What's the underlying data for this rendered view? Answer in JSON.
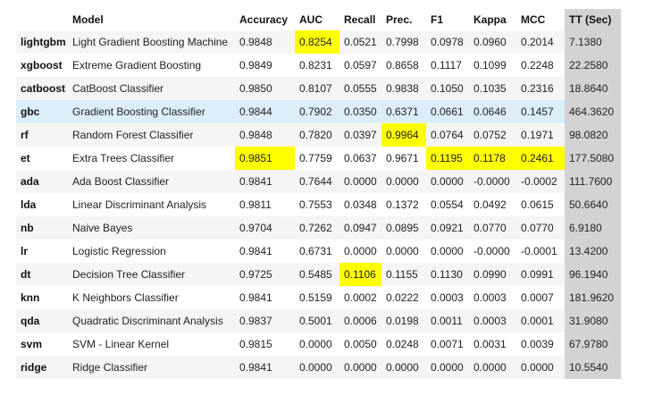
{
  "headers": [
    "",
    "Model",
    "Accuracy",
    "AUC",
    "Recall",
    "Prec.",
    "F1",
    "Kappa",
    "MCC",
    "TT (Sec)"
  ],
  "highlight_color": "#ffff00",
  "tt_column_color": "#d3d3d3",
  "hover_row_color": "#ddeefb",
  "hover_row_index": 3,
  "rows": [
    {
      "id": "lightgbm",
      "model": "Light Gradient Boosting Machine",
      "values": [
        "0.9848",
        "0.8254",
        "0.0521",
        "0.7998",
        "0.0978",
        "0.0960",
        "0.2014",
        "7.1380"
      ],
      "highlight": [
        1
      ]
    },
    {
      "id": "xgboost",
      "model": "Extreme Gradient Boosting",
      "values": [
        "0.9849",
        "0.8231",
        "0.0597",
        "0.8658",
        "0.1117",
        "0.1099",
        "0.2248",
        "22.2580"
      ],
      "highlight": []
    },
    {
      "id": "catboost",
      "model": "CatBoost Classifier",
      "values": [
        "0.9850",
        "0.8107",
        "0.0555",
        "0.9838",
        "0.1050",
        "0.1035",
        "0.2316",
        "18.8640"
      ],
      "highlight": []
    },
    {
      "id": "gbc",
      "model": "Gradient Boosting Classifier",
      "values": [
        "0.9844",
        "0.7902",
        "0.0350",
        "0.6371",
        "0.0661",
        "0.0646",
        "0.1457",
        "464.3620"
      ],
      "highlight": []
    },
    {
      "id": "rf",
      "model": "Random Forest Classifier",
      "values": [
        "0.9848",
        "0.7820",
        "0.0397",
        "0.9964",
        "0.0764",
        "0.0752",
        "0.1971",
        "98.0820"
      ],
      "highlight": [
        3
      ]
    },
    {
      "id": "et",
      "model": "Extra Trees Classifier",
      "values": [
        "0.9851",
        "0.7759",
        "0.0637",
        "0.9671",
        "0.1195",
        "0.1178",
        "0.2461",
        "177.5080"
      ],
      "highlight": [
        0,
        4,
        5,
        6
      ]
    },
    {
      "id": "ada",
      "model": "Ada Boost Classifier",
      "values": [
        "0.9841",
        "0.7644",
        "0.0000",
        "0.0000",
        "0.0000",
        "-0.0000",
        "-0.0002",
        "111.7600"
      ],
      "highlight": []
    },
    {
      "id": "lda",
      "model": "Linear Discriminant Analysis",
      "values": [
        "0.9811",
        "0.7553",
        "0.0348",
        "0.1372",
        "0.0554",
        "0.0492",
        "0.0615",
        "50.6640"
      ],
      "highlight": []
    },
    {
      "id": "nb",
      "model": "Naive Bayes",
      "values": [
        "0.9704",
        "0.7262",
        "0.0947",
        "0.0895",
        "0.0921",
        "0.0770",
        "0.0770",
        "6.9180"
      ],
      "highlight": []
    },
    {
      "id": "lr",
      "model": "Logistic Regression",
      "values": [
        "0.9841",
        "0.6731",
        "0.0000",
        "0.0000",
        "0.0000",
        "-0.0000",
        "-0.0001",
        "13.4200"
      ],
      "highlight": []
    },
    {
      "id": "dt",
      "model": "Decision Tree Classifier",
      "values": [
        "0.9725",
        "0.5485",
        "0.1106",
        "0.1155",
        "0.1130",
        "0.0990",
        "0.0991",
        "96.1940"
      ],
      "highlight": [
        2
      ]
    },
    {
      "id": "knn",
      "model": "K Neighbors Classifier",
      "values": [
        "0.9841",
        "0.5159",
        "0.0002",
        "0.0222",
        "0.0003",
        "0.0003",
        "0.0007",
        "181.9620"
      ],
      "highlight": []
    },
    {
      "id": "qda",
      "model": "Quadratic Discriminant Analysis",
      "values": [
        "0.9837",
        "0.5001",
        "0.0006",
        "0.0198",
        "0.0011",
        "0.0003",
        "0.0001",
        "31.9080"
      ],
      "highlight": []
    },
    {
      "id": "svm",
      "model": "SVM - Linear Kernel",
      "values": [
        "0.9815",
        "0.0000",
        "0.0050",
        "0.0248",
        "0.0071",
        "0.0031",
        "0.0039",
        "67.9780"
      ],
      "highlight": []
    },
    {
      "id": "ridge",
      "model": "Ridge Classifier",
      "values": [
        "0.9841",
        "0.0000",
        "0.0000",
        "0.0000",
        "0.0000",
        "0.0000",
        "0.0000",
        "10.5540"
      ],
      "highlight": []
    }
  ]
}
